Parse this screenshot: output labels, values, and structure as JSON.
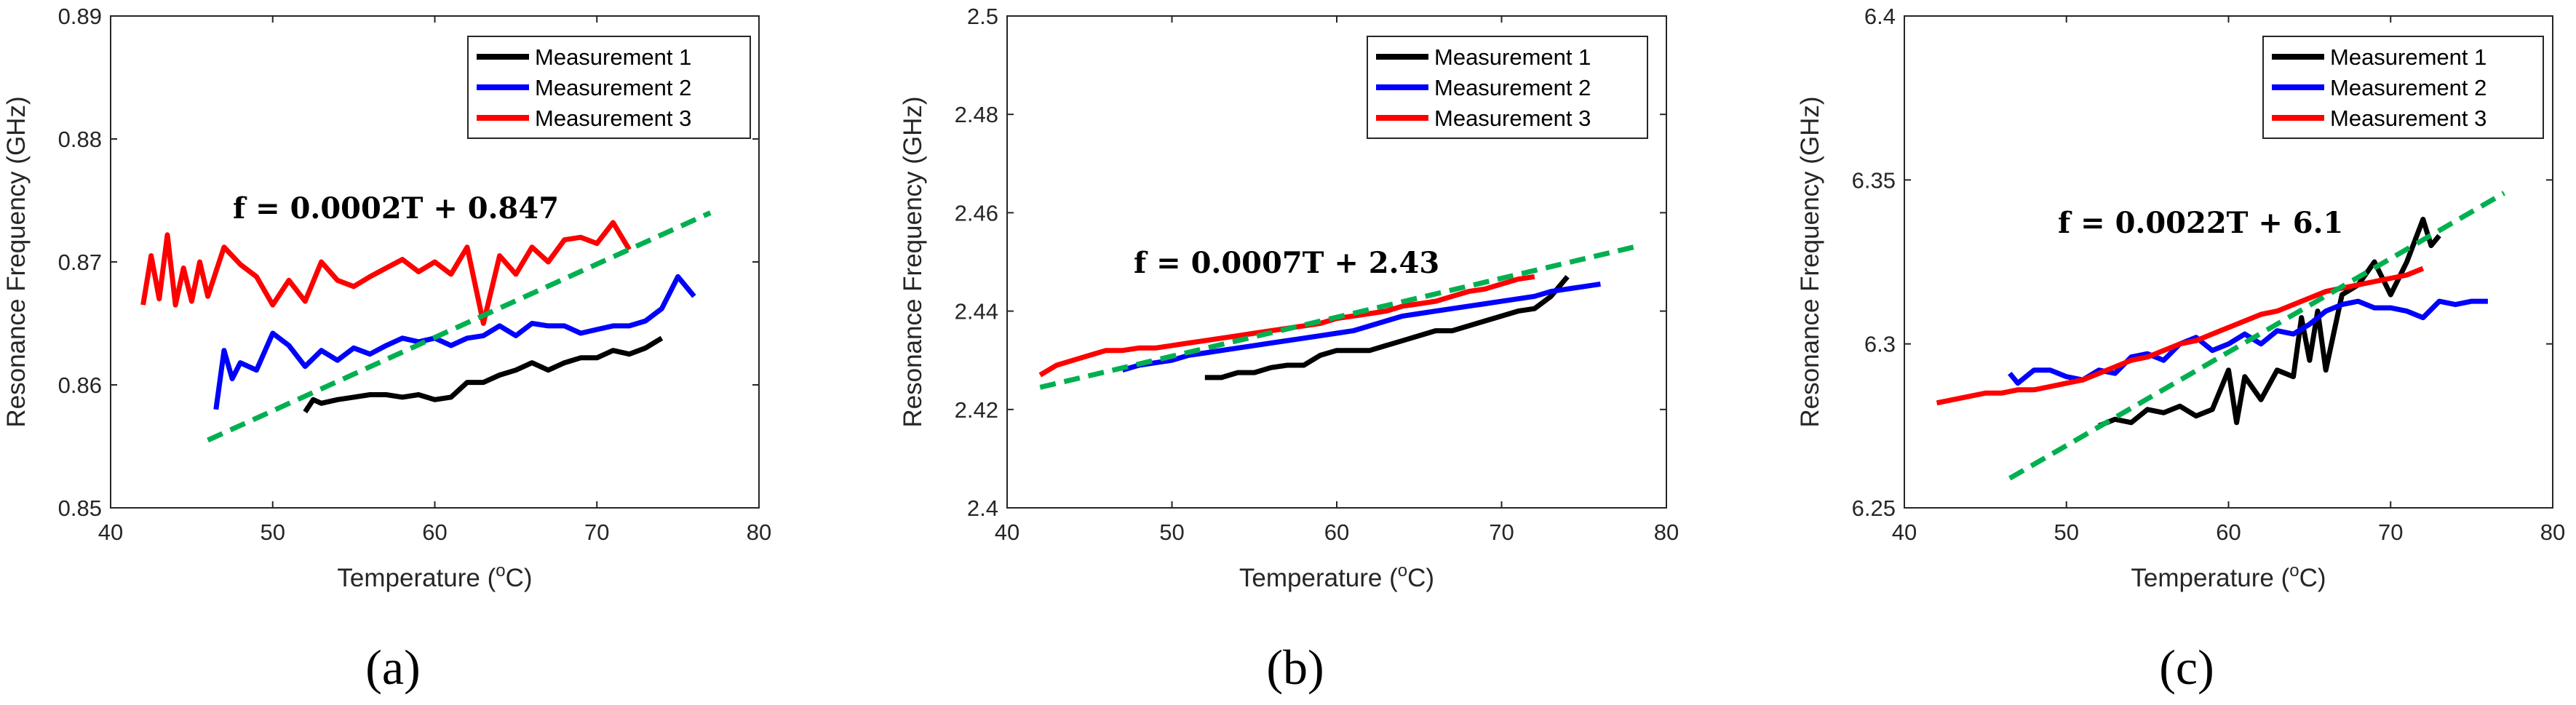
{
  "chart_data": [
    {
      "type": "line",
      "panel_label": "(a)",
      "xlabel": "Temperature (",
      "xlabel_sup": "o",
      "xlabel_tail": "C)",
      "ylabel": "Resonance Frequency (GHz)",
      "xlim": [
        40,
        80
      ],
      "ylim": [
        0.85,
        0.89
      ],
      "xticks": [
        "40",
        "50",
        "60",
        "70",
        "80"
      ],
      "yticks": [
        "0.85",
        "0.86",
        "0.87",
        "0.88",
        "0.89"
      ],
      "legend_position": "top-right",
      "equation": "f = 0.0002T + 0.847",
      "series": [
        {
          "name": "Measurement 1",
          "color": "#000000",
          "x": [
            52,
            52.5,
            53,
            54,
            55,
            56,
            57,
            58,
            59,
            60,
            61,
            62,
            63,
            64,
            65,
            66,
            67,
            68,
            69,
            70,
            71,
            72,
            73,
            74
          ],
          "y": [
            0.8578,
            0.8588,
            0.8585,
            0.8588,
            0.859,
            0.8592,
            0.8592,
            0.859,
            0.8592,
            0.8588,
            0.859,
            0.8602,
            0.8602,
            0.8608,
            0.8612,
            0.8618,
            0.8612,
            0.8618,
            0.8622,
            0.8622,
            0.8628,
            0.8625,
            0.863,
            0.8638
          ]
        },
        {
          "name": "Measurement 2",
          "color": "#0000ff",
          "x": [
            46.5,
            47,
            47.5,
            48,
            49,
            50,
            51,
            52,
            53,
            54,
            55,
            56,
            57,
            58,
            59,
            60,
            61,
            62,
            63,
            64,
            65,
            66,
            67,
            68,
            69,
            70,
            71,
            72,
            73,
            74,
            75,
            76
          ],
          "y": [
            0.858,
            0.8628,
            0.8605,
            0.8618,
            0.8612,
            0.8642,
            0.8632,
            0.8615,
            0.8628,
            0.862,
            0.863,
            0.8625,
            0.8632,
            0.8638,
            0.8635,
            0.8638,
            0.8632,
            0.8638,
            0.864,
            0.8648,
            0.864,
            0.865,
            0.8648,
            0.8648,
            0.8642,
            0.8645,
            0.8648,
            0.8648,
            0.8652,
            0.8662,
            0.8688,
            0.8672
          ]
        },
        {
          "name": "Measurement 3",
          "color": "#ff0000",
          "x": [
            42,
            42.5,
            43,
            43.5,
            44,
            44.5,
            45,
            45.5,
            46,
            47,
            48,
            49,
            50,
            51,
            52,
            53,
            54,
            55,
            56,
            57,
            58,
            59,
            60,
            61,
            62,
            63,
            64,
            65,
            66,
            67,
            68,
            69,
            70,
            71,
            72
          ],
          "y": [
            0.8665,
            0.8705,
            0.867,
            0.8722,
            0.8665,
            0.8695,
            0.8668,
            0.87,
            0.8672,
            0.8712,
            0.8698,
            0.8688,
            0.8665,
            0.8685,
            0.8668,
            0.87,
            0.8685,
            0.868,
            0.8688,
            0.8695,
            0.8702,
            0.8692,
            0.87,
            0.869,
            0.8712,
            0.865,
            0.8705,
            0.869,
            0.8712,
            0.87,
            0.8718,
            0.872,
            0.8715,
            0.8732,
            0.871
          ]
        },
        {
          "name": "fit",
          "color": "#00b050",
          "dashed": true,
          "legend": false,
          "x": [
            46,
            77
          ],
          "y": [
            0.8555,
            0.874
          ]
        }
      ]
    },
    {
      "type": "line",
      "panel_label": "(b)",
      "xlabel": "Temperature (",
      "xlabel_sup": "o",
      "xlabel_tail": "C)",
      "ylabel": "Resonance Frequency (GHz)",
      "xlim": [
        40,
        80
      ],
      "ylim": [
        2.4,
        2.5
      ],
      "xticks": [
        "40",
        "50",
        "60",
        "70",
        "80"
      ],
      "yticks": [
        "2.4",
        "2.42",
        "2.44",
        "2.46",
        "2.48",
        "2.5"
      ],
      "legend_position": "top-right",
      "equation": "f = 0.0007T + 2.43",
      "series": [
        {
          "name": "Measurement 1",
          "color": "#000000",
          "x": [
            52,
            53,
            54,
            55,
            56,
            57,
            58,
            59,
            60,
            61,
            62,
            63,
            64,
            65,
            66,
            67,
            68,
            69,
            70,
            71,
            72,
            73,
            74
          ],
          "y": [
            2.4265,
            2.4265,
            2.4275,
            2.4275,
            2.4285,
            2.429,
            2.429,
            2.431,
            2.432,
            2.432,
            2.432,
            2.433,
            2.434,
            2.435,
            2.436,
            2.436,
            2.437,
            2.438,
            2.439,
            2.44,
            2.4405,
            2.443,
            2.447
          ]
        },
        {
          "name": "Measurement 2",
          "color": "#0000ff",
          "x": [
            47,
            48,
            49,
            50,
            51,
            52,
            53,
            54,
            55,
            56,
            57,
            58,
            59,
            60,
            61,
            62,
            63,
            64,
            65,
            66,
            67,
            68,
            69,
            70,
            71,
            72,
            73,
            74,
            75,
            76
          ],
          "y": [
            2.428,
            2.429,
            2.4295,
            2.43,
            2.431,
            2.4315,
            2.432,
            2.4325,
            2.433,
            2.4335,
            2.434,
            2.4345,
            2.435,
            2.4355,
            2.436,
            2.437,
            2.438,
            2.439,
            2.4395,
            2.44,
            2.4405,
            2.441,
            2.4415,
            2.442,
            2.4425,
            2.443,
            2.444,
            2.4445,
            2.445,
            2.4455
          ]
        },
        {
          "name": "Measurement 3",
          "color": "#ff0000",
          "x": [
            42,
            43,
            44,
            45,
            46,
            47,
            48,
            49,
            50,
            51,
            52,
            53,
            54,
            55,
            56,
            57,
            58,
            59,
            60,
            61,
            62,
            63,
            64,
            65,
            66,
            67,
            68,
            69,
            70,
            71,
            72
          ],
          "y": [
            2.427,
            2.429,
            2.43,
            2.431,
            2.432,
            2.432,
            2.4325,
            2.4325,
            2.433,
            2.4335,
            2.434,
            2.4345,
            2.435,
            2.4355,
            2.436,
            2.4365,
            2.437,
            2.4375,
            2.4385,
            2.439,
            2.4395,
            2.44,
            2.441,
            2.4415,
            2.442,
            2.443,
            2.444,
            2.4445,
            2.4455,
            2.4465,
            2.447
          ]
        },
        {
          "name": "fit",
          "color": "#00b050",
          "dashed": true,
          "legend": false,
          "x": [
            42,
            78
          ],
          "y": [
            2.4245,
            2.453
          ]
        }
      ]
    },
    {
      "type": "line",
      "panel_label": "(c)",
      "xlabel": "Temperature (",
      "xlabel_sup": "o",
      "xlabel_tail": "C)",
      "ylabel": "Resonance Frequency (GHz)",
      "xlim": [
        40,
        80
      ],
      "ylim": [
        6.25,
        6.4
      ],
      "xticks": [
        "40",
        "50",
        "60",
        "70",
        "80"
      ],
      "yticks": [
        "6.25",
        "6.3",
        "6.35",
        "6.4"
      ],
      "legend_position": "top-right",
      "equation": "f = 0.0022T + 6.1",
      "series": [
        {
          "name": "Measurement 1",
          "color": "#000000",
          "x": [
            52,
            53,
            54,
            55,
            56,
            57,
            58,
            59,
            60,
            60.5,
            61,
            62,
            63,
            64,
            64.5,
            65,
            65.5,
            66,
            67,
            68,
            69,
            70,
            71,
            72,
            72.5,
            73
          ],
          "y": [
            6.275,
            6.277,
            6.276,
            6.28,
            6.279,
            6.281,
            6.278,
            6.28,
            6.292,
            6.276,
            6.29,
            6.283,
            6.292,
            6.29,
            6.308,
            6.295,
            6.31,
            6.292,
            6.315,
            6.318,
            6.325,
            6.315,
            6.325,
            6.338,
            6.33,
            6.333
          ]
        },
        {
          "name": "Measurement 2",
          "color": "#0000ff",
          "x": [
            46.5,
            47,
            48,
            49,
            50,
            51,
            52,
            53,
            54,
            55,
            56,
            57,
            58,
            59,
            60,
            61,
            62,
            63,
            64,
            65,
            66,
            67,
            68,
            69,
            70,
            71,
            72,
            73,
            74,
            75,
            76
          ],
          "y": [
            6.291,
            6.288,
            6.292,
            6.292,
            6.29,
            6.289,
            6.292,
            6.291,
            6.296,
            6.297,
            6.295,
            6.3,
            6.302,
            6.298,
            6.3,
            6.303,
            6.3,
            6.304,
            6.303,
            6.306,
            6.31,
            6.312,
            6.313,
            6.311,
            6.311,
            6.31,
            6.308,
            6.313,
            6.312,
            6.313,
            6.313
          ]
        },
        {
          "name": "Measurement 3",
          "color": "#ff0000",
          "x": [
            42,
            43,
            44,
            45,
            46,
            47,
            48,
            49,
            50,
            51,
            52,
            53,
            54,
            55,
            56,
            57,
            58,
            59,
            60,
            61,
            62,
            63,
            64,
            65,
            66,
            67,
            68,
            69,
            70,
            71,
            72
          ],
          "y": [
            6.282,
            6.283,
            6.284,
            6.285,
            6.285,
            6.286,
            6.286,
            6.287,
            6.288,
            6.289,
            6.291,
            6.293,
            6.295,
            6.296,
            6.298,
            6.3,
            6.301,
            6.303,
            6.305,
            6.307,
            6.309,
            6.31,
            6.312,
            6.314,
            6.316,
            6.317,
            6.318,
            6.319,
            6.32,
            6.321,
            6.323
          ]
        },
        {
          "name": "fit",
          "color": "#00b050",
          "dashed": true,
          "legend": false,
          "x": [
            46.5,
            77
          ],
          "y": [
            6.259,
            6.346
          ]
        }
      ]
    }
  ]
}
